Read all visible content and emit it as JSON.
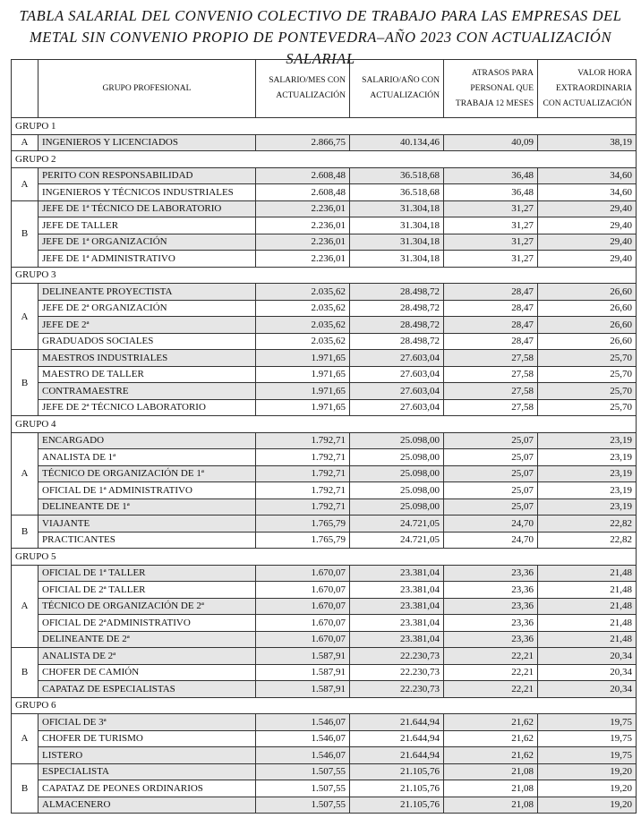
{
  "title": [
    "TABLA SALARIAL DEL CONVENIO COLECTIVO DE TRABAJO PARA LAS EMPRESAS DEL",
    "METAL SIN CONVENIO PROPIO DE PONTEVEDRA–AÑO 2023 CON ACTUALIZACIÓN SALARIAL"
  ],
  "table": {
    "header": [
      "GRUPO PROFESIONAL",
      "SALARIO/MES CON ACTUALIZACIÓN",
      "SALARIO/AÑO CON ACTUALIZACIÓN",
      "ATRASOS PARA PERSONAL QUE TRABAJA 12 MESES",
      "VALOR HORA EXTRAORDINARIA CON ACTUALIZACIÓN"
    ],
    "groups": [
      {
        "name": "GRUPO 1",
        "subgroups": [
          {
            "letter": "A",
            "rows": [
              [
                "INGENIEROS Y LICENCIADOS",
                "2.866,75",
                "40.134,46",
                "40,09",
                "38,19"
              ]
            ]
          }
        ]
      },
      {
        "name": "GRUPO 2",
        "subgroups": [
          {
            "letter": "A",
            "rows": [
              [
                "PERITO CON RESPONSABILIDAD",
                "2.608,48",
                "36.518,68",
                "36,48",
                "34,60"
              ],
              [
                "INGENIEROS Y TÉCNICOS INDUSTRIALES",
                "2.608,48",
                "36.518,68",
                "36,48",
                "34,60"
              ]
            ]
          },
          {
            "letter": "B",
            "rows": [
              [
                "JEFE DE 1ª TÉCNICO DE LABORATORIO",
                "2.236,01",
                "31.304,18",
                "31,27",
                "29,40"
              ],
              [
                "JEFE DE TALLER",
                "2.236,01",
                "31.304,18",
                "31,27",
                "29,40"
              ],
              [
                "JEFE DE 1ª ORGANIZACIÓN",
                "2.236,01",
                "31.304,18",
                "31,27",
                "29,40"
              ],
              [
                "JEFE DE 1ª ADMINISTRATIVO",
                "2.236,01",
                "31.304,18",
                "31,27",
                "29,40"
              ]
            ]
          }
        ]
      },
      {
        "name": "GRUPO 3",
        "subgroups": [
          {
            "letter": "A",
            "rows": [
              [
                "DELINEANTE PROYECTISTA",
                "2.035,62",
                "28.498,72",
                "28,47",
                "26,60"
              ],
              [
                "JEFE DE 2ª ORGANIZACIÓN",
                "2.035,62",
                "28.498,72",
                "28,47",
                "26,60"
              ],
              [
                "JEFE DE 2ª",
                "2.035,62",
                "28.498,72",
                "28,47",
                "26,60"
              ],
              [
                "GRADUADOS SOCIALES",
                "2.035,62",
                "28.498,72",
                "28,47",
                "26,60"
              ]
            ]
          },
          {
            "letter": "B",
            "rows": [
              [
                "MAESTROS INDUSTRIALES",
                "1.971,65",
                "27.603,04",
                "27,58",
                "25,70"
              ],
              [
                "MAESTRO DE TALLER",
                "1.971,65",
                "27.603,04",
                "27,58",
                "25,70"
              ],
              [
                "CONTRAMAESTRE",
                "1.971,65",
                "27.603,04",
                "27,58",
                "25,70"
              ],
              [
                "JEFE DE 2ª TÉCNICO LABORATORIO",
                "1.971,65",
                "27.603,04",
                "27,58",
                "25,70"
              ]
            ]
          }
        ]
      },
      {
        "name": "GRUPO 4",
        "subgroups": [
          {
            "letter": "A",
            "rows": [
              [
                "ENCARGADO",
                "1.792,71",
                "25.098,00",
                "25,07",
                "23,19"
              ],
              [
                "ANALISTA DE 1ª",
                "1.792,71",
                "25.098,00",
                "25,07",
                "23,19"
              ],
              [
                "TÉCNICO DE ORGANIZACIÓN DE 1ª",
                "1.792,71",
                "25.098,00",
                "25,07",
                "23,19"
              ],
              [
                "OFICIAL DE 1ª ADMINISTRATIVO",
                "1.792,71",
                "25.098,00",
                "25,07",
                "23,19"
              ],
              [
                "DELINEANTE DE 1ª",
                "1.792,71",
                "25.098,00",
                "25,07",
                "23,19"
              ]
            ]
          },
          {
            "letter": "B",
            "rows": [
              [
                "VIAJANTE",
                "1.765,79",
                "24.721,05",
                "24,70",
                "22,82"
              ],
              [
                "PRACTICANTES",
                "1.765,79",
                "24.721,05",
                "24,70",
                "22,82"
              ]
            ]
          }
        ]
      },
      {
        "name": "GRUPO 5",
        "subgroups": [
          {
            "letter": "A",
            "rows": [
              [
                "OFICIAL DE 1ª TALLER",
                "1.670,07",
                "23.381,04",
                "23,36",
                "21,48"
              ],
              [
                "OFICIAL DE 2ª TALLER",
                "1.670,07",
                "23.381,04",
                "23,36",
                "21,48"
              ],
              [
                "TÉCNICO DE ORGANIZACIÓN DE 2ª",
                "1.670,07",
                "23.381,04",
                "23,36",
                "21,48"
              ],
              [
                "OFICIAL DE 2ªADMINISTRATIVO",
                "1.670,07",
                "23.381,04",
                "23,36",
                "21,48"
              ],
              [
                "DELINEANTE DE 2ª",
                "1.670,07",
                "23.381,04",
                "23,36",
                "21,48"
              ]
            ]
          },
          {
            "letter": "B",
            "rows": [
              [
                "ANALISTA DE 2ª",
                "1.587,91",
                "22.230,73",
                "22,21",
                "20,34"
              ],
              [
                "CHOFER DE CAMIÓN",
                "1.587,91",
                "22.230,73",
                "22,21",
                "20,34"
              ],
              [
                "CAPATAZ DE ESPECIALISTAS",
                "1.587,91",
                "22.230,73",
                "22,21",
                "20,34"
              ]
            ]
          }
        ]
      },
      {
        "name": "GRUPO 6",
        "subgroups": [
          {
            "letter": "A",
            "rows": [
              [
                "OFICIAL DE 3ª",
                "1.546,07",
                "21.644,94",
                "21,62",
                "19,75"
              ],
              [
                "CHOFER DE TURISMO",
                "1.546,07",
                "21.644,94",
                "21,62",
                "19,75"
              ],
              [
                "LISTERO",
                "1.546,07",
                "21.644,94",
                "21,62",
                "19,75"
              ]
            ]
          },
          {
            "letter": "B",
            "rows": [
              [
                "ESPECIALISTA",
                "1.507,55",
                "21.105,76",
                "21,08",
                "19,20"
              ],
              [
                "CAPATAZ DE PEONES ORDINARIOS",
                "1.507,55",
                "21.105,76",
                "21,08",
                "19,20"
              ],
              [
                "ALMACENERO",
                "1.507,55",
                "21.105,76",
                "21,08",
                "19,20"
              ]
            ]
          }
        ]
      }
    ]
  }
}
